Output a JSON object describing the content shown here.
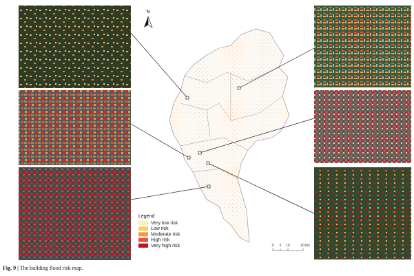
{
  "north": "N",
  "legend": {
    "title": "Legend",
    "items": [
      {
        "label": "Very low risk",
        "color": "#fdf1a8"
      },
      {
        "label": "Low risk",
        "color": "#fbcf63"
      },
      {
        "label": "Moderate risk",
        "color": "#f29a45"
      },
      {
        "label": "High risk",
        "color": "#e5553a"
      },
      {
        "label": "Very high risk",
        "color": "#bd1128"
      }
    ]
  },
  "scale_bar": {
    "labels": [
      "0",
      "5",
      "10",
      "20 km"
    ]
  },
  "caption": {
    "label": "Fig. 9 |",
    "text": "The building flood risk map."
  }
}
